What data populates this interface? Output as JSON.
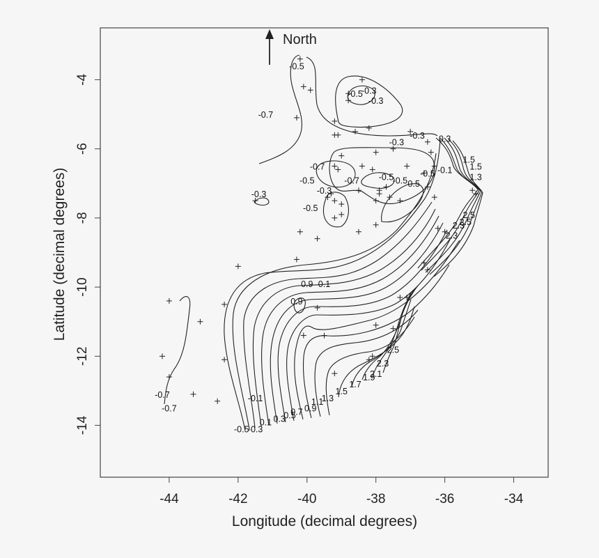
{
  "chart_data": {
    "type": "contour",
    "xlabel": "Longitude (decimal degrees)",
    "ylabel": "Latitude (decimal degrees)",
    "xlim": [
      -46,
      -33
    ],
    "ylim": [
      -15.5,
      -2.5
    ],
    "x_ticks": [
      -44,
      -42,
      -40,
      -38,
      -36,
      -34
    ],
    "y_ticks": [
      -4,
      -6,
      -8,
      -10,
      -12,
      -14
    ],
    "north_label": "North",
    "contour_labels": [
      {
        "text": "-0.5",
        "lon": -40.3,
        "lat": -3.7
      },
      {
        "text": "-0.3",
        "lon": -38.2,
        "lat": -4.4
      },
      {
        "text": "-0.5",
        "lon": -38.6,
        "lat": -4.5
      },
      {
        "text": "-0.3",
        "lon": -38.0,
        "lat": -4.7
      },
      {
        "text": "-0.7",
        "lon": -41.2,
        "lat": -5.1
      },
      {
        "text": "-0.3",
        "lon": -37.4,
        "lat": -5.9
      },
      {
        "text": "-0.3",
        "lon": -36.8,
        "lat": -5.7
      },
      {
        "text": "0.3",
        "lon": -36.0,
        "lat": -5.8
      },
      {
        "text": "1.5",
        "lon": -35.3,
        "lat": -6.4
      },
      {
        "text": "1.5",
        "lon": -35.1,
        "lat": -6.6
      },
      {
        "text": "1.3",
        "lon": -35.1,
        "lat": -6.9
      },
      {
        "text": "-0.7",
        "lon": -39.7,
        "lat": -6.6
      },
      {
        "text": "-0.1",
        "lon": -36.0,
        "lat": -6.7
      },
      {
        "text": "-0.5",
        "lon": -36.5,
        "lat": -6.8
      },
      {
        "text": "-0.7",
        "lon": -38.7,
        "lat": -7.0
      },
      {
        "text": "-0.5",
        "lon": -37.7,
        "lat": -6.9
      },
      {
        "text": "-0.5",
        "lon": -37.3,
        "lat": -7.0
      },
      {
        "text": "0.5",
        "lon": -36.9,
        "lat": -7.1
      },
      {
        "text": "-0.5",
        "lon": -40.0,
        "lat": -7.0
      },
      {
        "text": "-0.3",
        "lon": -39.5,
        "lat": -7.3
      },
      {
        "text": "-0.3",
        "lon": -41.4,
        "lat": -7.4
      },
      {
        "text": "-0.5",
        "lon": -39.9,
        "lat": -7.8
      },
      {
        "text": "2.5",
        "lon": -35.3,
        "lat": -8.0
      },
      {
        "text": "2.5",
        "lon": -35.4,
        "lat": -8.2
      },
      {
        "text": "2.3",
        "lon": -35.6,
        "lat": -8.3
      },
      {
        "text": "2.3",
        "lon": -35.8,
        "lat": -8.6
      },
      {
        "text": "0.9",
        "lon": -40.0,
        "lat": -10.0
      },
      {
        "text": "0.1",
        "lon": -39.5,
        "lat": -10.0
      },
      {
        "text": "0.9",
        "lon": -40.3,
        "lat": -10.5
      },
      {
        "text": "2.5",
        "lon": -37.5,
        "lat": -11.9
      },
      {
        "text": "2.3",
        "lon": -37.8,
        "lat": -12.3
      },
      {
        "text": "2.1",
        "lon": -38.0,
        "lat": -12.6
      },
      {
        "text": "1.9",
        "lon": -38.2,
        "lat": -12.7
      },
      {
        "text": "1.7",
        "lon": -38.6,
        "lat": -12.9
      },
      {
        "text": "1.5",
        "lon": -39.0,
        "lat": -13.1
      },
      {
        "text": "1.3",
        "lon": -39.4,
        "lat": -13.3
      },
      {
        "text": "1.1",
        "lon": -39.7,
        "lat": -13.4
      },
      {
        "text": "0.9",
        "lon": -39.9,
        "lat": -13.6
      },
      {
        "text": "0.7",
        "lon": -40.3,
        "lat": -13.7
      },
      {
        "text": "0.5",
        "lon": -40.5,
        "lat": -13.8
      },
      {
        "text": "0.3",
        "lon": -40.8,
        "lat": -13.9
      },
      {
        "text": "0.1",
        "lon": -41.2,
        "lat": -14.0
      },
      {
        "text": "-0.3",
        "lon": -41.5,
        "lat": -14.2
      },
      {
        "text": "-0.5",
        "lon": -41.9,
        "lat": -14.2
      },
      {
        "text": "-0.1",
        "lon": -41.5,
        "lat": -13.3
      },
      {
        "text": "-0.7",
        "lon": -44.2,
        "lat": -13.2
      },
      {
        "text": "-0.7",
        "lon": -44.0,
        "lat": -13.6
      }
    ],
    "stations": [
      [
        -40.2,
        -3.4
      ],
      [
        -40.1,
        -4.2
      ],
      [
        -38.4,
        -4.0
      ],
      [
        -38.8,
        -4.4
      ],
      [
        -38.8,
        -4.6
      ],
      [
        -39.9,
        -4.3
      ],
      [
        -40.3,
        -5.1
      ],
      [
        -39.2,
        -5.2
      ],
      [
        -39.2,
        -5.6
      ],
      [
        -38.6,
        -5.5
      ],
      [
        -38.2,
        -5.4
      ],
      [
        -39.1,
        -5.6
      ],
      [
        -37.0,
        -5.5
      ],
      [
        -36.5,
        -5.8
      ],
      [
        -36.4,
        -6.1
      ],
      [
        -37.5,
        -6.0
      ],
      [
        -38.0,
        -6.1
      ],
      [
        -39.0,
        -6.2
      ],
      [
        -39.2,
        -6.5
      ],
      [
        -39.1,
        -6.6
      ],
      [
        -38.4,
        -6.5
      ],
      [
        -38.1,
        -6.6
      ],
      [
        -37.1,
        -6.5
      ],
      [
        -36.3,
        -6.5
      ],
      [
        -36.6,
        -6.7
      ],
      [
        -36.5,
        -7.1
      ],
      [
        -37.7,
        -7.1
      ],
      [
        -37.9,
        -7.2
      ],
      [
        -37.3,
        -7.5
      ],
      [
        -37.6,
        -7.4
      ],
      [
        -37.9,
        -7.3
      ],
      [
        -38.5,
        -7.2
      ],
      [
        -39.3,
        -7.3
      ],
      [
        -39.2,
        -7.5
      ],
      [
        -39.4,
        -7.4
      ],
      [
        -39.0,
        -7.6
      ],
      [
        -38.0,
        -7.5
      ],
      [
        -36.3,
        -7.4
      ],
      [
        -35.2,
        -7.2
      ],
      [
        -35.1,
        -7.3
      ],
      [
        -41.5,
        -7.5
      ],
      [
        -39.0,
        -7.9
      ],
      [
        -39.2,
        -8.0
      ],
      [
        -40.2,
        -8.4
      ],
      [
        -39.7,
        -8.6
      ],
      [
        -38.5,
        -8.4
      ],
      [
        -38.0,
        -8.2
      ],
      [
        -36.2,
        -8.3
      ],
      [
        -36.0,
        -8.4
      ],
      [
        -42.0,
        -9.4
      ],
      [
        -40.3,
        -9.2
      ],
      [
        -36.6,
        -9.3
      ],
      [
        -36.5,
        -9.5
      ],
      [
        -44.0,
        -10.4
      ],
      [
        -42.4,
        -10.5
      ],
      [
        -39.7,
        -10.6
      ],
      [
        -37.3,
        -10.3
      ],
      [
        -37.1,
        -10.3
      ],
      [
        -43.1,
        -11.0
      ],
      [
        -40.1,
        -11.4
      ],
      [
        -39.5,
        -11.4
      ],
      [
        -38.0,
        -11.1
      ],
      [
        -37.5,
        -11.2
      ],
      [
        -44.2,
        -12.0
      ],
      [
        -42.4,
        -12.1
      ],
      [
        -38.2,
        -12.1
      ],
      [
        -38.1,
        -12.0
      ],
      [
        -39.2,
        -12.5
      ],
      [
        -44.0,
        -12.6
      ],
      [
        -43.3,
        -13.1
      ],
      [
        -42.6,
        -13.3
      ]
    ]
  }
}
